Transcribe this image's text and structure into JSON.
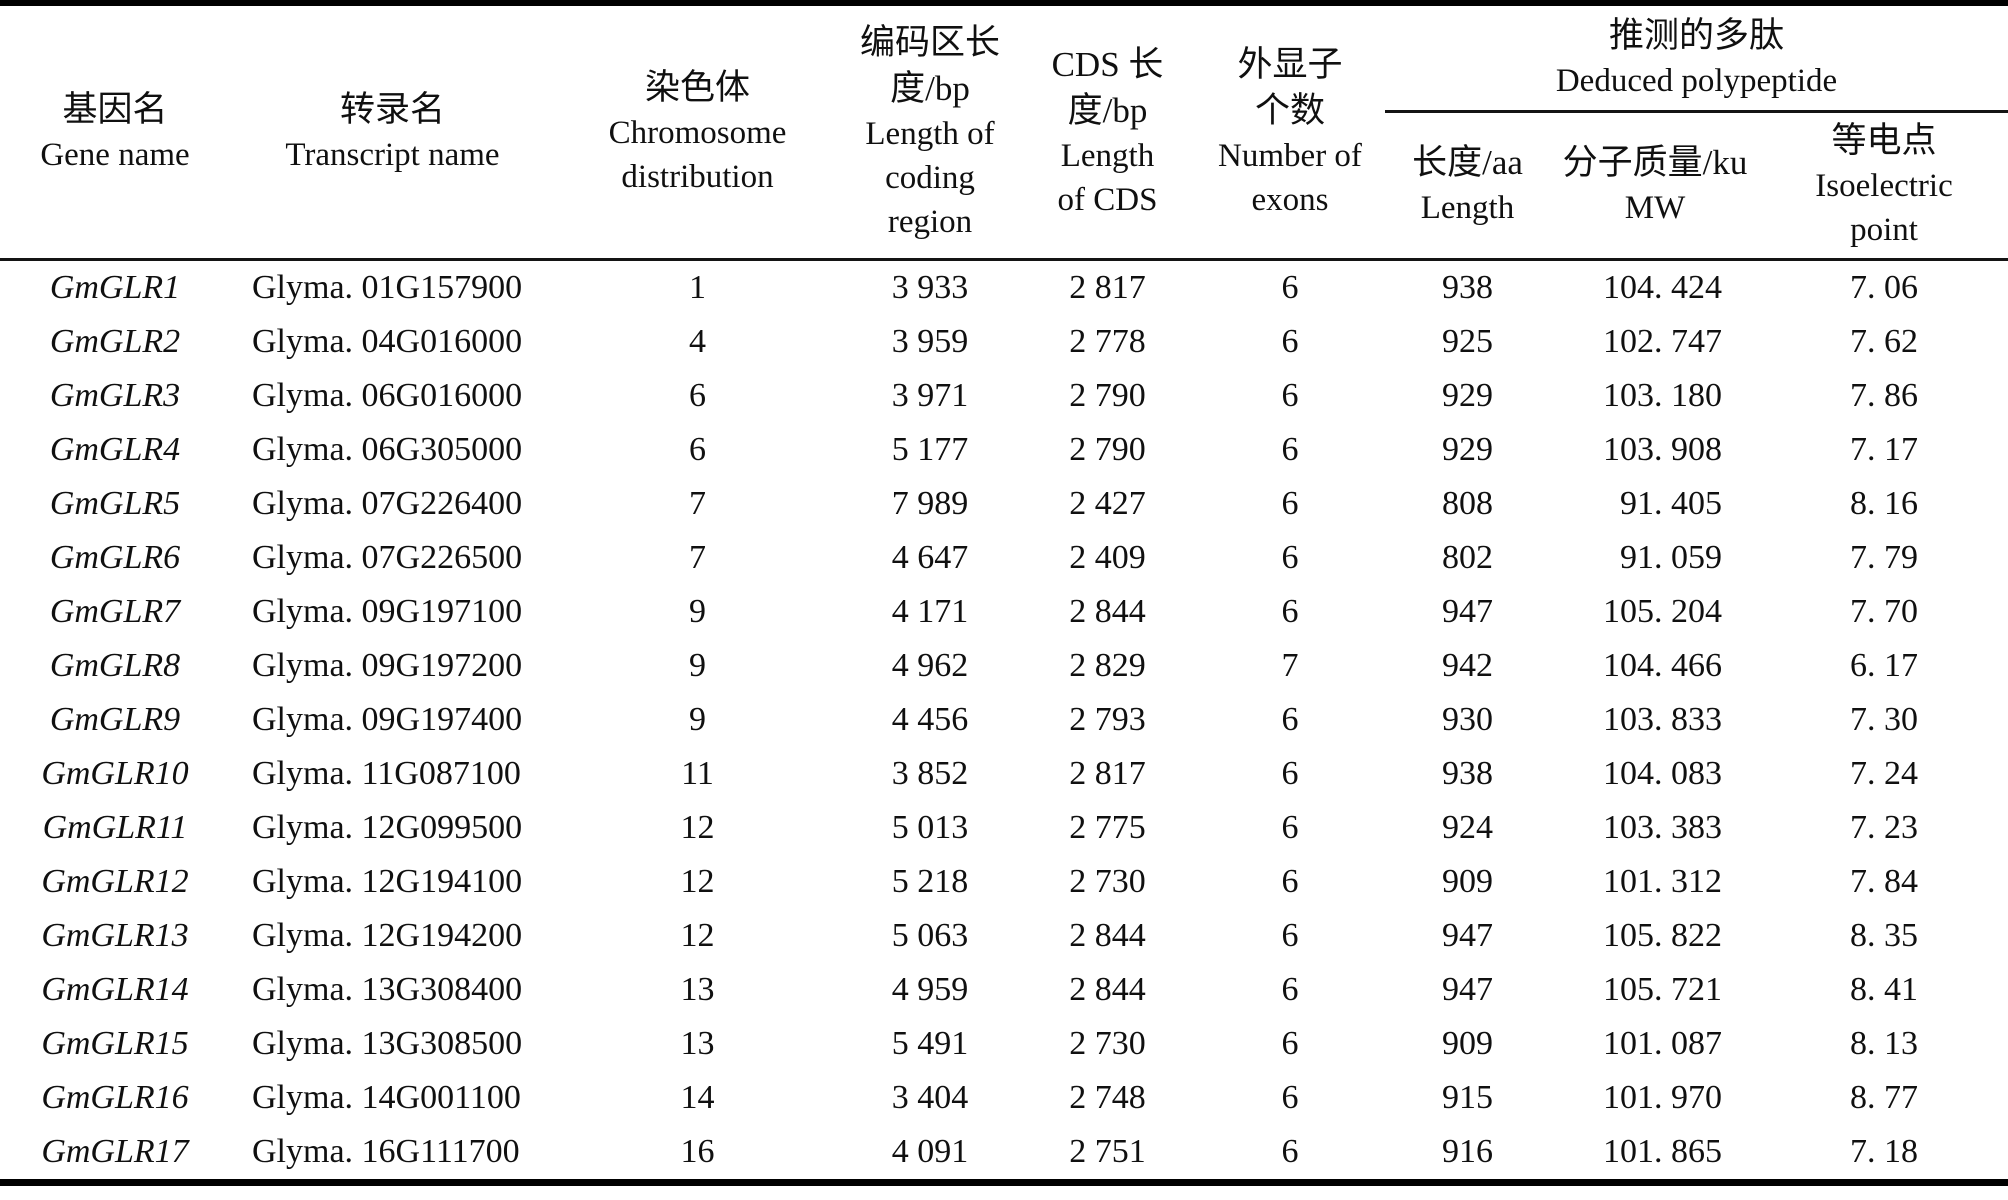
{
  "table": {
    "column_keys": [
      "gene-name",
      "transcript-name",
      "chromosome",
      "coding-region-length",
      "cds-length",
      "exon-count",
      "aa-length",
      "molecular-weight",
      "isoelectric-point"
    ],
    "header": {
      "gene": {
        "zh": "基因名",
        "en": "Gene name"
      },
      "transcript": {
        "zh": "转录名",
        "en": "Transcript name"
      },
      "chromosome": {
        "zh": "染色体",
        "en1": "Chromosome",
        "en2": "distribution"
      },
      "coding": {
        "zh1": "编码区长",
        "zh2": "度/bp",
        "en1": "Length of",
        "en2": "coding",
        "en3": "region"
      },
      "cds": {
        "zh1": "CDS 长",
        "zh2": "度/bp",
        "en1": "Length",
        "en2": "of CDS"
      },
      "exons": {
        "zh1": "外显子",
        "zh2": "个数",
        "en1": "Number of",
        "en2": "exons"
      },
      "polypeptide_group": {
        "zh": "推测的多肽",
        "en": "Deduced polypeptide"
      },
      "aa": {
        "zh": "长度/aa",
        "en": "Length"
      },
      "mw": {
        "zh": "分子质量/ku",
        "en": "MW"
      },
      "pi": {
        "zh": "等电点",
        "en1": "Isoelectric",
        "en2": "point"
      }
    },
    "rows": [
      [
        "GmGLR1",
        "Glyma. 01G157900",
        "1",
        "3 933",
        "2 817",
        "6",
        "938",
        "104. 424",
        "7. 06"
      ],
      [
        "GmGLR2",
        "Glyma. 04G016000",
        "4",
        "3 959",
        "2 778",
        "6",
        "925",
        "102. 747",
        "7. 62"
      ],
      [
        "GmGLR3",
        "Glyma. 06G016000",
        "6",
        "3 971",
        "2 790",
        "6",
        "929",
        "103. 180",
        "7. 86"
      ],
      [
        "GmGLR4",
        "Glyma. 06G305000",
        "6",
        "5 177",
        "2 790",
        "6",
        "929",
        "103. 908",
        "7. 17"
      ],
      [
        "GmGLR5",
        "Glyma. 07G226400",
        "7",
        "7 989",
        "2 427",
        "6",
        "808",
        "91. 405",
        "8. 16"
      ],
      [
        "GmGLR6",
        "Glyma. 07G226500",
        "7",
        "4 647",
        "2 409",
        "6",
        "802",
        "91. 059",
        "7. 79"
      ],
      [
        "GmGLR7",
        "Glyma. 09G197100",
        "9",
        "4 171",
        "2 844",
        "6",
        "947",
        "105. 204",
        "7. 70"
      ],
      [
        "GmGLR8",
        "Glyma. 09G197200",
        "9",
        "4 962",
        "2 829",
        "7",
        "942",
        "104. 466",
        "6. 17"
      ],
      [
        "GmGLR9",
        "Glyma. 09G197400",
        "9",
        "4 456",
        "2 793",
        "6",
        "930",
        "103. 833",
        "7. 30"
      ],
      [
        "GmGLR10",
        "Glyma. 11G087100",
        "11",
        "3 852",
        "2 817",
        "6",
        "938",
        "104. 083",
        "7. 24"
      ],
      [
        "GmGLR11",
        "Glyma. 12G099500",
        "12",
        "5 013",
        "2 775",
        "6",
        "924",
        "103. 383",
        "7. 23"
      ],
      [
        "GmGLR12",
        "Glyma. 12G194100",
        "12",
        "5 218",
        "2 730",
        "6",
        "909",
        "101. 312",
        "7. 84"
      ],
      [
        "GmGLR13",
        "Glyma. 12G194200",
        "12",
        "5 063",
        "2 844",
        "6",
        "947",
        "105. 822",
        "8. 35"
      ],
      [
        "GmGLR14",
        "Glyma. 13G308400",
        "13",
        "4 959",
        "2 844",
        "6",
        "947",
        "105. 721",
        "8. 41"
      ],
      [
        "GmGLR15",
        "Glyma. 13G308500",
        "13",
        "5 491",
        "2 730",
        "6",
        "909",
        "101. 087",
        "8. 13"
      ],
      [
        "GmGLR16",
        "Glyma. 14G001100",
        "14",
        "3 404",
        "2 748",
        "6",
        "915",
        "101. 970",
        "8. 77"
      ],
      [
        "GmGLR17",
        "Glyma. 16G111700",
        "16",
        "4 091",
        "2 751",
        "6",
        "916",
        "101. 865",
        "7. 18"
      ]
    ]
  }
}
